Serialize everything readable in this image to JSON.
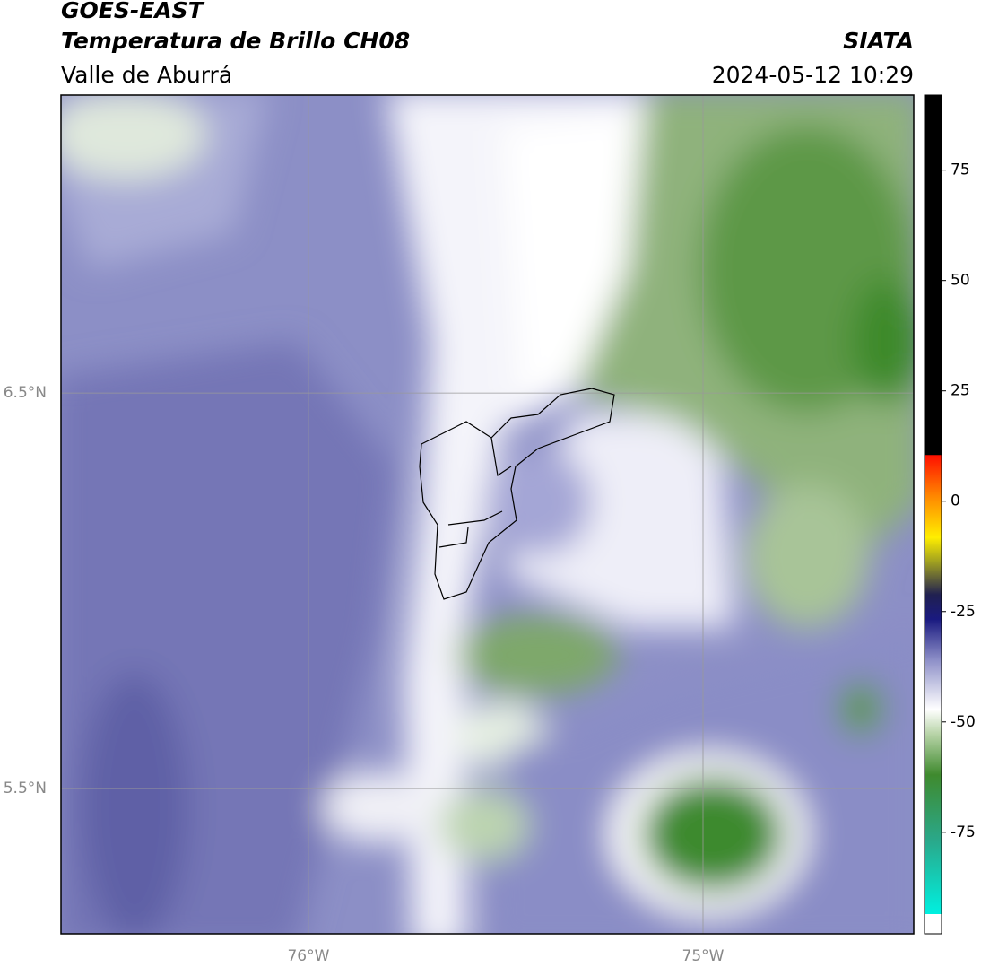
{
  "header": {
    "title": "GOES-EAST",
    "subtitle": "Temperatura de Brillo CH08",
    "region": "Valle de Aburrá",
    "source": "SIATA",
    "timestamp": "2024-05-12 10:29"
  },
  "map": {
    "xlim": [
      -76.627,
      -74.466
    ],
    "ylim": [
      5.133,
      7.253
    ],
    "xticks": [
      {
        "value": -76,
        "label": "76°W"
      },
      {
        "value": -75,
        "label": "75°W"
      }
    ],
    "yticks": [
      {
        "value": 6.5,
        "label": "6.5°N"
      },
      {
        "value": 5.5,
        "label": "5.5°N"
      }
    ]
  },
  "colorbar": {
    "lim": [
      -98,
      92
    ],
    "ticks": [
      75,
      50,
      25,
      0,
      -25,
      -50,
      -75
    ]
  }
}
